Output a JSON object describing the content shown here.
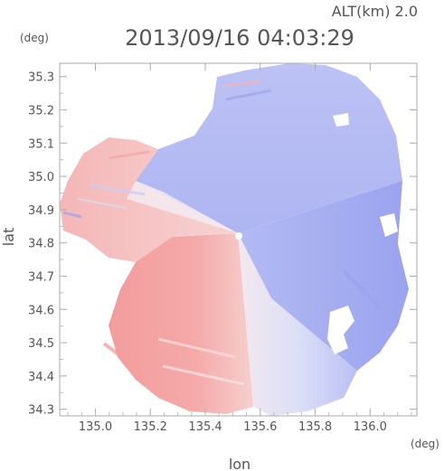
{
  "header": {
    "alt_label": "ALT(km) 2.0",
    "timestamp": "2013/09/16 04:03:29"
  },
  "chart_data": {
    "type": "heatmap",
    "title": "2013/09/16 04:03:29",
    "xlabel": "lon",
    "ylabel": "lat",
    "x_unit": "(deg)",
    "y_unit": "(deg)",
    "xlim": [
      134.87,
      136.17
    ],
    "ylim": [
      34.28,
      35.34
    ],
    "x_ticks": [
      135.0,
      135.2,
      135.4,
      135.6,
      135.8,
      136.0
    ],
    "x_tick_labels": [
      "135.0",
      "135.2",
      "135.4",
      "135.6",
      "135.8",
      "136.0"
    ],
    "y_ticks": [
      34.3,
      34.4,
      34.5,
      34.6,
      34.7,
      34.8,
      34.9,
      35.0,
      35.1,
      35.2,
      35.3
    ],
    "y_tick_labels": [
      "34.3",
      "34.4",
      "34.5",
      "34.6",
      "34.7",
      "34.8",
      "34.9",
      "35.0",
      "35.1",
      "35.2",
      "35.3"
    ],
    "radar_center": {
      "lon": 135.52,
      "lat": 34.82
    },
    "colors": {
      "positive": "#f08a8a",
      "negative": "#8a94ef",
      "neutral": "#ffffff",
      "axis": "#aaaaaa"
    },
    "grid": false,
    "legend": "none"
  }
}
